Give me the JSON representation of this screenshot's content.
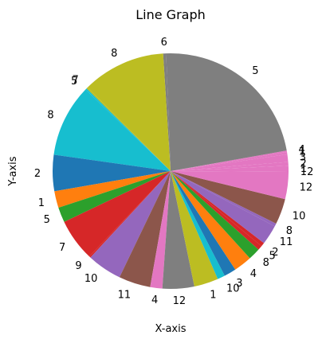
{
  "chart_data": {
    "type": "pie",
    "title": "Line Graph",
    "xlabel": "X-axis",
    "ylabel": "Y-axis",
    "start_angle_deg": 0,
    "direction": "counterclockwise",
    "slices": [
      {
        "label": "1",
        "value": 0.35,
        "color": "#e377c2"
      },
      {
        "label": "2",
        "value": 0.25,
        "color": "#e377c2"
      },
      {
        "label": "3",
        "value": 0.5,
        "color": "#e377c2"
      },
      {
        "label": "1",
        "value": 0.15,
        "color": "#e377c2"
      },
      {
        "label": "4",
        "value": 0.1,
        "color": "#e377c2"
      },
      {
        "label": "5",
        "value": 11,
        "color": "#7f7f7f"
      },
      {
        "label": "6",
        "value": 0.2,
        "color": "#7f7f7f"
      },
      {
        "label": "8",
        "value": 5.5,
        "color": "#bcbd22"
      },
      {
        "label": "7",
        "value": 0.1,
        "color": "#bcbd22"
      },
      {
        "label": "5",
        "value": 0.1,
        "color": "#17becf"
      },
      {
        "label": "8",
        "value": 4.8,
        "color": "#17becf"
      },
      {
        "label": "2",
        "value": 2.4,
        "color": "#1f77b4"
      },
      {
        "label": "1",
        "value": 1.1,
        "color": "#ff7f0e"
      },
      {
        "label": "5",
        "value": 1.0,
        "color": "#2ca02c"
      },
      {
        "label": "7",
        "value": 2.8,
        "color": "#d62728"
      },
      {
        "label": "9",
        "value": 0.1,
        "color": "#d62728"
      },
      {
        "label": "10",
        "value": 2.3,
        "color": "#9467bd"
      },
      {
        "label": "11",
        "value": 2.1,
        "color": "#8c564b"
      },
      {
        "label": "4",
        "value": 0.8,
        "color": "#e377c2"
      },
      {
        "label": "12",
        "value": 2.1,
        "color": "#7f7f7f"
      },
      {
        "label": "1",
        "value": 1.6,
        "color": "#bcbd22"
      },
      {
        "label": "10",
        "value": 0.5,
        "color": "#17becf"
      },
      {
        "label": "3",
        "value": 0.8,
        "color": "#1f77b4"
      },
      {
        "label": "4",
        "value": 1.2,
        "color": "#ff7f0e"
      },
      {
        "label": "8",
        "value": 0.8,
        "color": "#2ca02c"
      },
      {
        "label": "5",
        "value": 0.3,
        "color": "#d62728"
      },
      {
        "label": "2",
        "value": 0.25,
        "color": "#d62728"
      },
      {
        "label": "11",
        "value": 1.3,
        "color": "#9467bd"
      },
      {
        "label": "8",
        "value": 0.2,
        "color": "#9467bd"
      },
      {
        "label": "10",
        "value": 1.7,
        "color": "#8c564b"
      },
      {
        "label": "12",
        "value": 1.8,
        "color": "#e377c2"
      },
      {
        "label": "12",
        "value": 0.05,
        "color": "#e377c2"
      }
    ]
  }
}
